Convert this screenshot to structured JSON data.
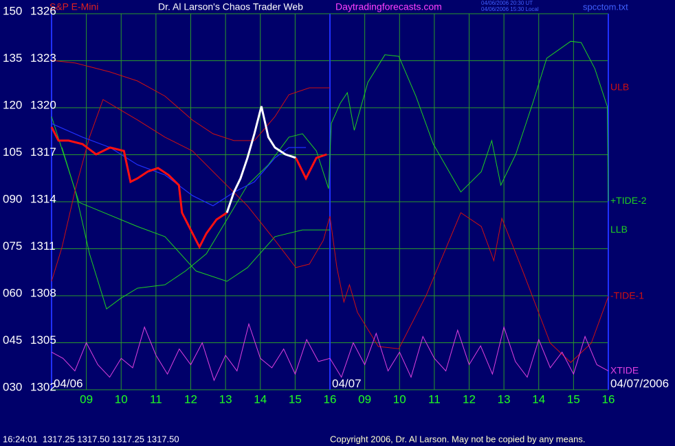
{
  "chart_data": {
    "type": "line",
    "instrument": "S&P E-Mini",
    "title": "Dr. Al Larson's Chaos Trader Web",
    "website": "Daytradingforecasts.com",
    "timestamps": [
      "04/06/2006 20:30 UT",
      "04/06/2006 15:30 Local"
    ],
    "file": "spcctom.txt",
    "status": "16:24:01  1317.25 1317.50 1317.25 1317.50",
    "copyright": "Copyright 2006, Dr. Al Larson. May not be copied by any means.",
    "grid": true,
    "xlim": [
      0,
      16
    ],
    "xticks": [
      {
        "value": 1,
        "label": "09"
      },
      {
        "value": 2,
        "label": "10"
      },
      {
        "value": 3,
        "label": "11"
      },
      {
        "value": 4,
        "label": "12"
      },
      {
        "value": 5,
        "label": "13"
      },
      {
        "value": 6,
        "label": "14"
      },
      {
        "value": 7,
        "label": "15"
      },
      {
        "value": 8,
        "label": "16"
      },
      {
        "value": 9,
        "label": "09"
      },
      {
        "value": 10,
        "label": "10"
      },
      {
        "value": 11,
        "label": "11"
      },
      {
        "value": 12,
        "label": "12"
      },
      {
        "value": 13,
        "label": "13"
      },
      {
        "value": 14,
        "label": "14"
      },
      {
        "value": 15,
        "label": "15"
      },
      {
        "value": 16,
        "label": "16"
      }
    ],
    "date_labels": [
      {
        "text": "04/06",
        "x": 0
      },
      {
        "text": "04/07",
        "x": 8
      },
      {
        "text": "04/07/2006",
        "x": 16
      }
    ],
    "ylim": [
      30,
      150
    ],
    "yticks": [
      150,
      135,
      120,
      105,
      {
        "value": 90,
        "label": "090"
      },
      {
        "value": 75,
        "label": "075"
      },
      {
        "value": 60,
        "label": "060"
      },
      {
        "value": 45,
        "label": "045"
      },
      {
        "value": 30,
        "label": "030"
      }
    ],
    "y2lim": [
      1302,
      1326
    ],
    "y2ticks": [
      1326,
      1323,
      1320,
      1317,
      1314,
      1311,
      1308,
      1305,
      1302
    ],
    "series": [
      {
        "name": "ULB",
        "color": "#d01010",
        "axis": "y2",
        "x": [
          0,
          0.69,
          1.68,
          2.47,
          3.26,
          4.05,
          4.64,
          5.24,
          5.83,
          6.42,
          6.82,
          7.41,
          8.0
        ],
        "values": [
          1323.02,
          1322.85,
          1322.28,
          1321.71,
          1320.74,
          1319.21,
          1318.34,
          1317.9,
          1317.9,
          1319.43,
          1320.83,
          1321.27,
          1321.27
        ]
      },
      {
        "name": "+TIDE-2",
        "color": "#20d020",
        "axis": "y",
        "x": [
          0.3,
          0.69,
          1.09,
          1.58,
          1.98,
          2.47,
          3.26,
          3.85,
          4.45,
          5.04,
          5.63,
          6.23,
          6.82,
          7.21,
          7.61,
          7.96,
          8.04,
          8.3,
          8.5,
          8.7,
          9.09,
          9.58,
          9.98,
          10.47,
          10.97,
          11.76,
          12.35,
          12.65,
          12.79,
          12.91,
          13.34,
          13.83,
          14.23,
          14.92,
          15.22,
          15.61,
          15.97,
          16.0
        ],
        "values": [
          107.3,
          93.1,
          73.4,
          55.8,
          59.1,
          62.4,
          63.5,
          67.9,
          73.4,
          84.3,
          95.3,
          101.8,
          110.6,
          111.7,
          106.2,
          94.2,
          115.0,
          121.5,
          124.8,
          112.8,
          128.1,
          136.9,
          136.4,
          123.7,
          108.4,
          93.1,
          99.6,
          109.5,
          101.8,
          95.3,
          105.1,
          121.5,
          135.8,
          141.2,
          140.8,
          132.5,
          120.4,
          90.2
        ]
      },
      {
        "name": "LLB",
        "color": "#20d020",
        "axis": "y2",
        "x": [
          0,
          0.79,
          2.47,
          3.26,
          4.15,
          5.04,
          5.63,
          6.42,
          7.21,
          8.0
        ],
        "values": [
          1319.43,
          1313.96,
          1312.42,
          1311.77,
          1309.58,
          1308.92,
          1309.79,
          1311.77,
          1312.2,
          1312.2
        ]
      },
      {
        "name": "-TIDE-1",
        "color": "#d01010",
        "axis": "y",
        "x": [
          0,
          0.3,
          0.69,
          1.09,
          1.48,
          1.98,
          2.47,
          3.26,
          4.05,
          4.84,
          5.63,
          6.42,
          7.02,
          7.41,
          7.81,
          8.0,
          8.2,
          8.4,
          8.56,
          8.79,
          9.39,
          9.98,
          10.77,
          11.76,
          12.35,
          12.71,
          12.94,
          13.54,
          14.33,
          14.92,
          15.51,
          16.0
        ],
        "values": [
          64.6,
          75.5,
          94.2,
          110.6,
          122.6,
          119.3,
          116.1,
          110.6,
          106.2,
          97.4,
          88.7,
          77.7,
          69.0,
          70.1,
          77.7,
          85.4,
          69.0,
          58.0,
          63.5,
          54.7,
          43.8,
          43.1,
          60.2,
          86.5,
          82.1,
          71.2,
          84.7,
          67.9,
          44.9,
          38.7,
          44.9,
          59.8
        ]
      },
      {
        "name": "XTIDE",
        "color": "#e040e0",
        "axis": "y",
        "x": [
          0,
          0.33,
          0.67,
          1,
          1.33,
          1.67,
          2,
          2.33,
          2.67,
          3,
          3.33,
          3.67,
          4,
          4.33,
          4.67,
          5,
          5.33,
          5.67,
          6,
          6.33,
          6.67,
          7,
          7.33,
          7.67,
          8,
          8.33,
          8.67,
          9,
          9.33,
          9.67,
          10,
          10.33,
          10.67,
          11,
          11.33,
          11.67,
          12,
          12.33,
          12.67,
          13,
          13.33,
          13.67,
          14,
          14.33,
          14.67,
          15,
          15.33,
          15.67,
          16
        ],
        "values": [
          42,
          40,
          36,
          45,
          38,
          34,
          40,
          37,
          50,
          41,
          35,
          43,
          38,
          45,
          33,
          41,
          36,
          51,
          40,
          37,
          43,
          35,
          46,
          39,
          40,
          34,
          45,
          38,
          48,
          36,
          42,
          34,
          47,
          40,
          36,
          49,
          38,
          44,
          35,
          50,
          39,
          34,
          46,
          37,
          42,
          35,
          47,
          38,
          36
        ]
      },
      {
        "color": "#2030ff",
        "axis": "y2",
        "x": [
          0,
          0.89,
          1.68,
          2.47,
          3.26,
          4.05,
          4.64,
          5.24,
          5.83,
          6.42,
          6.82,
          7.31
        ],
        "values": [
          1318.99,
          1318.12,
          1317.46,
          1316.36,
          1315.71,
          1314.39,
          1313.74,
          1314.61,
          1315.27,
          1316.8,
          1317.46,
          1317.46
        ]
      },
      {
        "color": "#ff1010",
        "axis": "y2",
        "x": [
          0,
          0.2,
          0.49,
          0.89,
          1.28,
          1.68,
          2.08,
          2.27,
          2.47,
          2.77,
          3.06,
          3.36,
          3.66,
          3.75,
          3.95,
          4.25,
          4.45,
          4.74,
          5.04
        ],
        "values": [
          1318.77,
          1317.9,
          1317.9,
          1317.68,
          1317.02,
          1317.46,
          1317.24,
          1315.27,
          1315.49,
          1315.93,
          1316.15,
          1315.71,
          1315.05,
          1313.3,
          1312.42,
          1311.11,
          1311.98,
          1312.86,
          1313.3
        ]
      },
      {
        "color": "#ffffff",
        "axis": "y2",
        "x": [
          5.04,
          5.24,
          5.43,
          5.63,
          5.83,
          6.03,
          6.23,
          6.42,
          6.72,
          7.02
        ],
        "values": [
          1313.3,
          1314.61,
          1315.49,
          1316.8,
          1318.34,
          1320.09,
          1318.12,
          1317.46,
          1317.02,
          1316.8
        ]
      },
      {
        "color": "#ff1010",
        "axis": "y2",
        "x": [
          7.02,
          7.31,
          7.61,
          7.91
        ],
        "values": [
          1316.8,
          1315.49,
          1316.8,
          1317.02
        ]
      }
    ]
  }
}
